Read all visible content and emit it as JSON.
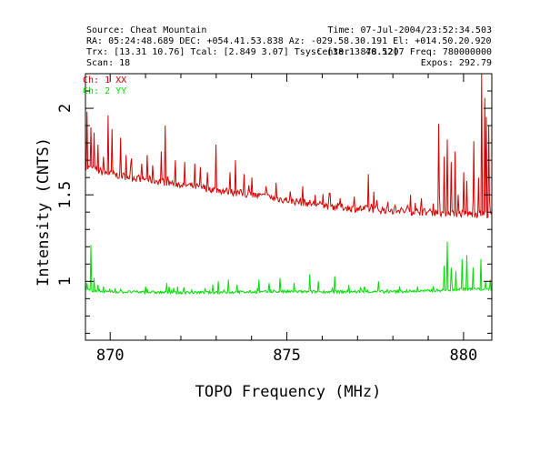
{
  "header": {
    "left": [
      "Source: Cheat Mountain",
      "RA: 05:24:48.689 DEC: +054.41.53.838  Az: -029.58.30.191 El: +014.50.20.920",
      "Trx: [13.31 10.76]  Tcal: [2.849 3.07]  Tsys: [38.13 40.52]",
      "Scan: 18"
    ],
    "right": [
      "Time: 07-Jul-2004/23:52:34.503",
      "",
      "Center: 878.1207 Freq: 780000000",
      "Expos: 292.79"
    ]
  },
  "colors": {
    "xx": "#d40000",
    "yy": "#00dd00",
    "axes": "#000000",
    "background": "#ffffff"
  },
  "chart_data": {
    "type": "line",
    "xlabel": "TOPO Frequency (MHz)",
    "ylabel": "Intensity (CNTS)",
    "xlim": [
      869.3,
      880.8
    ],
    "ylim": [
      0.66,
      2.2
    ],
    "xticks": [
      870,
      875,
      880
    ],
    "yticks": [
      1,
      1.5,
      2
    ],
    "xtick_labels": [
      "870",
      "875",
      "880"
    ],
    "ytick_labels": [
      "1",
      "1.5",
      "2"
    ],
    "grid": false,
    "legend_position": "top-left",
    "series": [
      {
        "name": "Ch: 1 XX",
        "color": "#d40000",
        "baseline": [
          [
            869.3,
            1.66
          ],
          [
            870.0,
            1.62
          ],
          [
            871.0,
            1.59
          ],
          [
            872.0,
            1.56
          ],
          [
            873.0,
            1.53
          ],
          [
            874.0,
            1.5
          ],
          [
            875.0,
            1.47
          ],
          [
            876.0,
            1.44
          ],
          [
            877.0,
            1.42
          ],
          [
            878.0,
            1.41
          ],
          [
            879.0,
            1.4
          ],
          [
            880.0,
            1.39
          ],
          [
            880.8,
            1.39
          ]
        ],
        "spikes": [
          [
            869.35,
            1.98
          ],
          [
            869.45,
            1.89
          ],
          [
            869.55,
            1.86
          ],
          [
            869.65,
            1.79
          ],
          [
            869.8,
            1.72
          ],
          [
            869.95,
            1.96
          ],
          [
            870.05,
            1.88
          ],
          [
            870.3,
            1.83
          ],
          [
            870.45,
            1.73
          ],
          [
            870.6,
            1.71
          ],
          [
            870.9,
            1.68
          ],
          [
            871.05,
            1.73
          ],
          [
            871.2,
            1.67
          ],
          [
            871.45,
            1.75
          ],
          [
            871.55,
            1.9
          ],
          [
            871.85,
            1.7
          ],
          [
            872.1,
            1.69
          ],
          [
            872.4,
            1.68
          ],
          [
            872.55,
            1.66
          ],
          [
            872.75,
            1.63
          ],
          [
            873.0,
            1.79
          ],
          [
            873.4,
            1.63
          ],
          [
            873.55,
            1.7
          ],
          [
            873.8,
            1.62
          ],
          [
            874.4,
            1.55
          ],
          [
            874.7,
            1.57
          ],
          [
            875.1,
            1.52
          ],
          [
            875.45,
            1.55
          ],
          [
            875.8,
            1.5
          ],
          [
            876.2,
            1.51
          ],
          [
            876.5,
            1.48
          ],
          [
            876.9,
            1.49
          ],
          [
            877.3,
            1.62
          ],
          [
            877.55,
            1.47
          ],
          [
            877.85,
            1.46
          ],
          [
            878.05,
            1.44
          ],
          [
            878.5,
            1.5
          ],
          [
            878.8,
            1.48
          ],
          [
            879.15,
            1.45
          ],
          [
            879.3,
            1.91
          ],
          [
            879.45,
            1.72
          ],
          [
            879.55,
            1.82
          ],
          [
            879.65,
            1.69
          ],
          [
            879.75,
            1.75
          ],
          [
            879.85,
            1.5
          ],
          [
            880.0,
            1.63
          ],
          [
            880.1,
            1.58
          ],
          [
            880.3,
            1.81
          ],
          [
            880.42,
            1.6
          ],
          [
            880.52,
            2.2
          ],
          [
            880.6,
            2.06
          ],
          [
            880.65,
            1.95
          ],
          [
            880.72,
            1.9
          ]
        ]
      },
      {
        "name": "Ch: 2 YY",
        "color": "#00dd00",
        "baseline": [
          [
            869.3,
            0.95
          ],
          [
            870.0,
            0.94
          ],
          [
            872.0,
            0.935
          ],
          [
            875.0,
            0.94
          ],
          [
            878.0,
            0.94
          ],
          [
            879.0,
            0.945
          ],
          [
            880.0,
            0.955
          ],
          [
            880.8,
            0.955
          ]
        ],
        "spikes": [
          [
            869.35,
            0.99
          ],
          [
            869.45,
            1.21
          ],
          [
            869.55,
            1.02
          ],
          [
            869.65,
            0.98
          ],
          [
            869.8,
            0.97
          ],
          [
            870.15,
            0.96
          ],
          [
            871.0,
            0.97
          ],
          [
            871.6,
            0.99
          ],
          [
            871.9,
            0.97
          ],
          [
            872.3,
            0.95
          ],
          [
            872.9,
            0.98
          ],
          [
            873.05,
            1.0
          ],
          [
            873.35,
            1.01
          ],
          [
            873.6,
            0.98
          ],
          [
            874.2,
            1.01
          ],
          [
            874.5,
            0.99
          ],
          [
            874.8,
            1.02
          ],
          [
            875.2,
            0.99
          ],
          [
            875.65,
            1.04
          ],
          [
            875.9,
            1.0
          ],
          [
            876.35,
            1.03
          ],
          [
            876.75,
            0.98
          ],
          [
            877.2,
            0.97
          ],
          [
            877.6,
            1.0
          ],
          [
            878.2,
            0.97
          ],
          [
            878.7,
            0.97
          ],
          [
            879.15,
            0.97
          ],
          [
            879.45,
            1.09
          ],
          [
            879.55,
            1.23
          ],
          [
            879.65,
            1.08
          ],
          [
            879.78,
            1.06
          ],
          [
            879.95,
            1.13
          ],
          [
            880.1,
            1.15
          ],
          [
            880.28,
            1.08
          ],
          [
            880.5,
            1.13
          ],
          [
            880.62,
            1.0
          ],
          [
            880.75,
            1.01
          ]
        ]
      }
    ]
  }
}
